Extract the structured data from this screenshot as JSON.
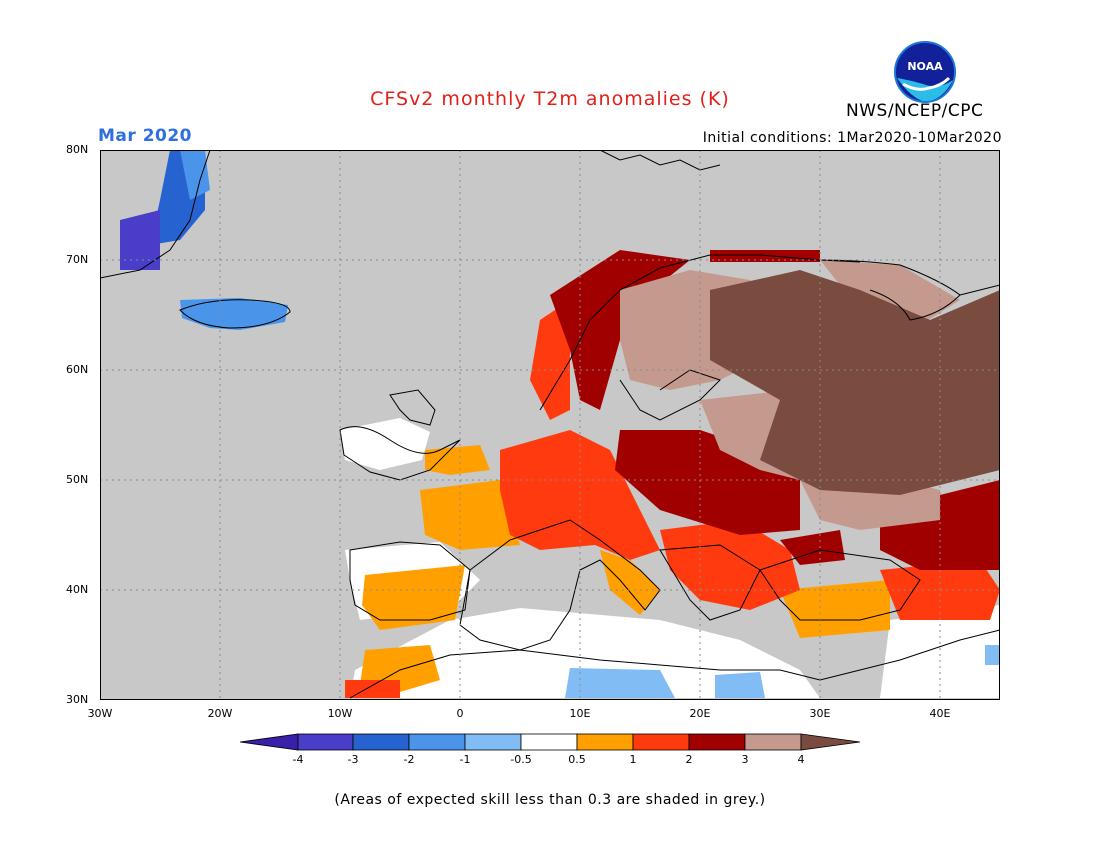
{
  "title": "CFSv2 monthly T2m anomalies (K)",
  "agency": "NWS/NCEP/CPC",
  "logo_text": "NOAA",
  "month": "Mar 2020",
  "initial_conditions": "Initial conditions: 1Mar2020-10Mar2020",
  "footnote": "(Areas of expected skill less than 0.3 are shaded in grey.)",
  "map": {
    "lat_labels": [
      "80N",
      "70N",
      "60N",
      "50N",
      "40N",
      "30N"
    ],
    "lon_labels": [
      "30W",
      "20W",
      "10W",
      "0",
      "10E",
      "20E",
      "30E",
      "40E"
    ],
    "extent": {
      "lon_min": -30,
      "lon_max": 45,
      "lat_min": 30,
      "lat_max": 80
    },
    "background_color": "#c8c8c8"
  },
  "colorbar": {
    "labels": [
      "-4",
      "-3",
      "-2",
      "-1",
      "-0.5",
      "0.5",
      "1",
      "2",
      "3",
      "4"
    ],
    "colors": [
      "#3a1fa8",
      "#4a3dc8",
      "#2663d0",
      "#4a95ea",
      "#82bcf5",
      "#ffffff",
      "#ffa000",
      "#ff3a0f",
      "#a10000",
      "#c49a8e",
      "#7a4b3f"
    ]
  }
}
